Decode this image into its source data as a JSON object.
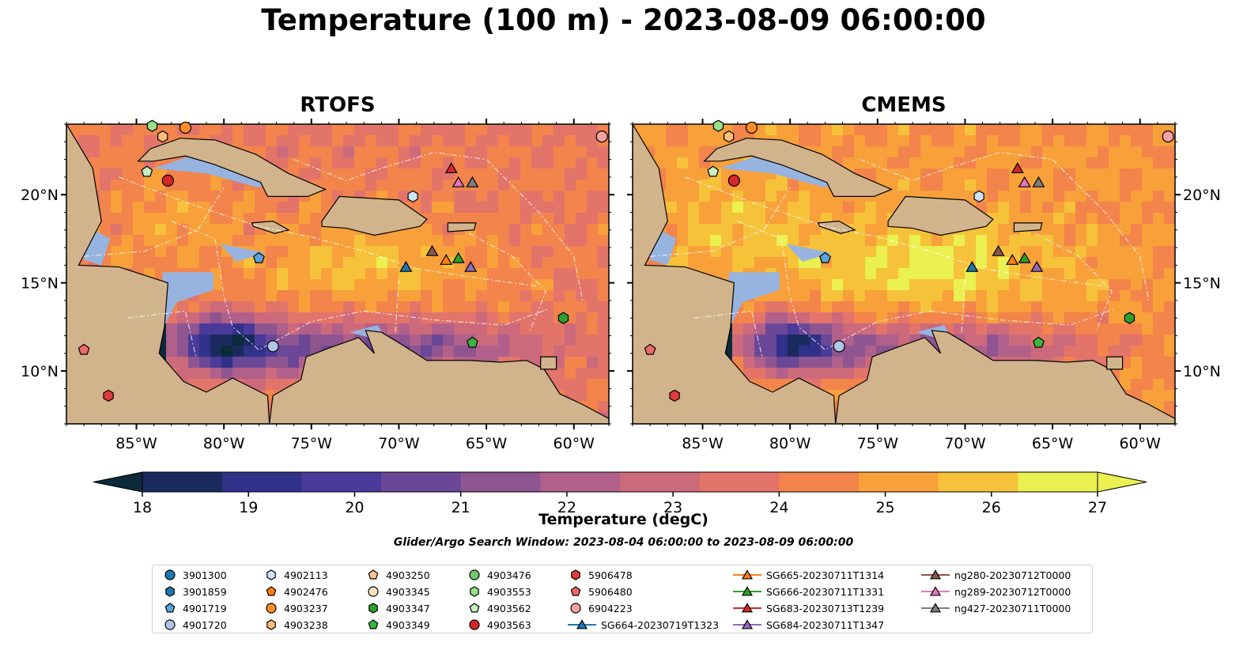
{
  "title": "Temperature (100 m) - 2023-08-09 06:00:00",
  "panels": [
    {
      "title": "RTOFS",
      "warmth": 0
    },
    {
      "title": "CMEMS",
      "warmth": 1
    }
  ],
  "map_extent": {
    "lon": [
      -89,
      -58
    ],
    "lat": [
      7,
      24
    ]
  },
  "lon_ticks": [
    {
      "value": -85,
      "label": "85°W"
    },
    {
      "value": -80,
      "label": "80°W"
    },
    {
      "value": -75,
      "label": "75°W"
    },
    {
      "value": -70,
      "label": "70°W"
    },
    {
      "value": -65,
      "label": "65°W"
    },
    {
      "value": -60,
      "label": "60°W"
    }
  ],
  "lat_ticks": [
    {
      "value": 10,
      "label": "10°N"
    },
    {
      "value": 15,
      "label": "15°N"
    },
    {
      "value": 20,
      "label": "20°N"
    }
  ],
  "colorbar": {
    "label": "Temperature (degC)",
    "range": [
      17.5,
      27.5
    ],
    "ticks": [
      18,
      19,
      20,
      21,
      22,
      23,
      24,
      25,
      26,
      27
    ],
    "extend": "both",
    "colors": [
      "#0b2a3a",
      "#1a2a5e",
      "#2f3288",
      "#4a3a9a",
      "#6b4797",
      "#8e5590",
      "#b0608a",
      "#cc6a7c",
      "#e2746a",
      "#f2844c",
      "#f8a03a",
      "#f6c23a",
      "#e9f050"
    ]
  },
  "land_color": "#d2b48c",
  "shelf_color": "#97b3e0",
  "search_window": "Glider/Argo Search Window: 2023-08-04 06:00:00 to 2023-08-09 06:00:00",
  "chart_data": [
    {
      "type": "scatter",
      "title": "RTOFS",
      "xlabel": "",
      "ylabel": "",
      "xlim": [
        -89,
        -58
      ],
      "ylim": [
        7,
        24
      ],
      "series_ref": "platforms"
    },
    {
      "type": "scatter",
      "title": "CMEMS",
      "xlabel": "",
      "ylabel": "",
      "xlim": [
        -89,
        -58
      ],
      "ylim": [
        7,
        24
      ],
      "series_ref": "platforms"
    }
  ],
  "platforms": [
    {
      "name": "3901300",
      "marker": "circle",
      "color": "#1f77b4",
      "lon": null,
      "lat": null
    },
    {
      "name": "3901859",
      "marker": "hexagon",
      "color": "#1f77b4",
      "lon": null,
      "lat": null
    },
    {
      "name": "4901719",
      "marker": "pentagon",
      "color": "#5aa4dc",
      "lon": -78.0,
      "lat": 16.4
    },
    {
      "name": "4901720",
      "marker": "circle",
      "color": "#aec7e8",
      "lon": -77.2,
      "lat": 11.4
    },
    {
      "name": "4902113",
      "marker": "hexagon",
      "color": "#cfe3f5",
      "lon": -69.2,
      "lat": 19.9
    },
    {
      "name": "4902476",
      "marker": "pentagon",
      "color": "#ff7f0e",
      "lon": null,
      "lat": null
    },
    {
      "name": "4903237",
      "marker": "circle",
      "color": "#ff8c2a",
      "lon": -82.2,
      "lat": 23.8
    },
    {
      "name": "4903238",
      "marker": "hexagon",
      "color": "#ffbb78",
      "lon": -83.5,
      "lat": 23.3
    },
    {
      "name": "4903250",
      "marker": "pentagon",
      "color": "#ffc890",
      "lon": null,
      "lat": null
    },
    {
      "name": "4903345",
      "marker": "circle",
      "color": "#ffe0c0",
      "lon": null,
      "lat": null
    },
    {
      "name": "4903347",
      "marker": "hexagon",
      "color": "#2ca02c",
      "lon": -60.6,
      "lat": 13.0
    },
    {
      "name": "4903349",
      "marker": "pentagon",
      "color": "#3db53d",
      "lon": -65.8,
      "lat": 11.6
    },
    {
      "name": "4903476",
      "marker": "circle",
      "color": "#70c970",
      "lon": null,
      "lat": null
    },
    {
      "name": "4903553",
      "marker": "hexagon",
      "color": "#98df8a",
      "lon": -84.1,
      "lat": 23.9
    },
    {
      "name": "4903562",
      "marker": "pentagon",
      "color": "#c8f0c0",
      "lon": -84.4,
      "lat": 21.3
    },
    {
      "name": "4903563",
      "marker": "circle",
      "color": "#d62728",
      "lon": -83.2,
      "lat": 20.8
    },
    {
      "name": "5906478",
      "marker": "hexagon",
      "color": "#e03b3b",
      "lon": -86.6,
      "lat": 8.6
    },
    {
      "name": "5906480",
      "marker": "pentagon",
      "color": "#ef6a6a",
      "lon": -88.0,
      "lat": 11.2
    },
    {
      "name": "6904223",
      "marker": "circle",
      "color": "#f4a3a0",
      "lon": -58.4,
      "lat": 23.3
    },
    {
      "name": "SG664-20230719T1323",
      "marker": "triangle",
      "color": "#1f77b4",
      "lon": -69.6,
      "lat": 15.9,
      "track": true
    },
    {
      "name": "SG665-20230711T1314",
      "marker": "triangle",
      "color": "#ff7f0e",
      "lon": -67.3,
      "lat": 16.3,
      "track": true
    },
    {
      "name": "SG666-20230711T1331",
      "marker": "triangle",
      "color": "#2ca02c",
      "lon": -66.6,
      "lat": 16.4,
      "track": true
    },
    {
      "name": "SG683-20230713T1239",
      "marker": "triangle",
      "color": "#d62728",
      "lon": -67.0,
      "lat": 21.5,
      "track": true
    },
    {
      "name": "SG684-20230711T1347",
      "marker": "triangle",
      "color": "#9467bd",
      "lon": -65.9,
      "lat": 15.9,
      "track": true
    },
    {
      "name": "ng280-20230712T0000",
      "marker": "triangle",
      "color": "#8c564b",
      "lon": -68.1,
      "lat": 16.8,
      "track": true
    },
    {
      "name": "ng289-20230712T0000",
      "marker": "triangle",
      "color": "#e377c2",
      "lon": -66.6,
      "lat": 20.7,
      "track": true
    },
    {
      "name": "ng427-20230711T0000",
      "marker": "triangle",
      "color": "#7f7f7f",
      "lon": -65.8,
      "lat": 20.7,
      "track": true
    }
  ]
}
